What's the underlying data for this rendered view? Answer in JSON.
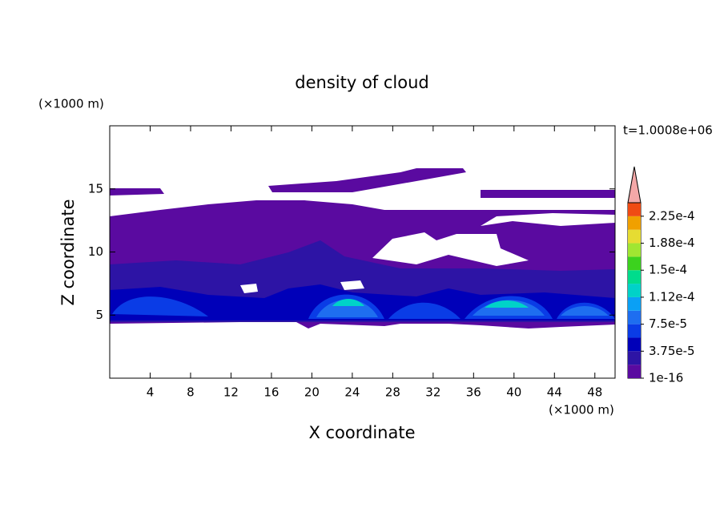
{
  "chart_data": {
    "type": "contour",
    "title": "density of cloud",
    "x_label": "X coordinate",
    "y_label": "Z coordinate",
    "x_unit": "(×1000 m)",
    "y_unit": "(×1000 m)",
    "time_label": "t=1.0008e+06",
    "xlim": [
      0,
      50
    ],
    "ylim": [
      0,
      20
    ],
    "xticks": [
      4,
      8,
      12,
      16,
      20,
      24,
      28,
      32,
      36,
      40,
      44,
      48
    ],
    "yticks": [
      5,
      10,
      15
    ],
    "colorbar": {
      "lim": [
        1e-16,
        0.00024375
      ],
      "colors": [
        "#5a0aa0",
        "#2d14a5",
        "#0000b9",
        "#0a3ce6",
        "#1e6ef0",
        "#0aa0f5",
        "#00d2c8",
        "#00dc8c",
        "#3cd21e",
        "#a0e632",
        "#e6dc32",
        "#f0a000",
        "#f04b14"
      ],
      "over_color": "#f4a8a8",
      "ticks": [
        {
          "value": 1e-16,
          "label": "1e-16"
        },
        {
          "value": 3.75e-05,
          "label": "3.75e-5"
        },
        {
          "value": 7.5e-05,
          "label": "7.5e-5"
        },
        {
          "value": 0.0001125,
          "label": "1.12e-4"
        },
        {
          "value": 0.00015,
          "label": "1.5e-4"
        },
        {
          "value": 0.0001875,
          "label": "1.88e-4"
        },
        {
          "value": 0.000225,
          "label": "2.25e-4"
        }
      ]
    }
  }
}
